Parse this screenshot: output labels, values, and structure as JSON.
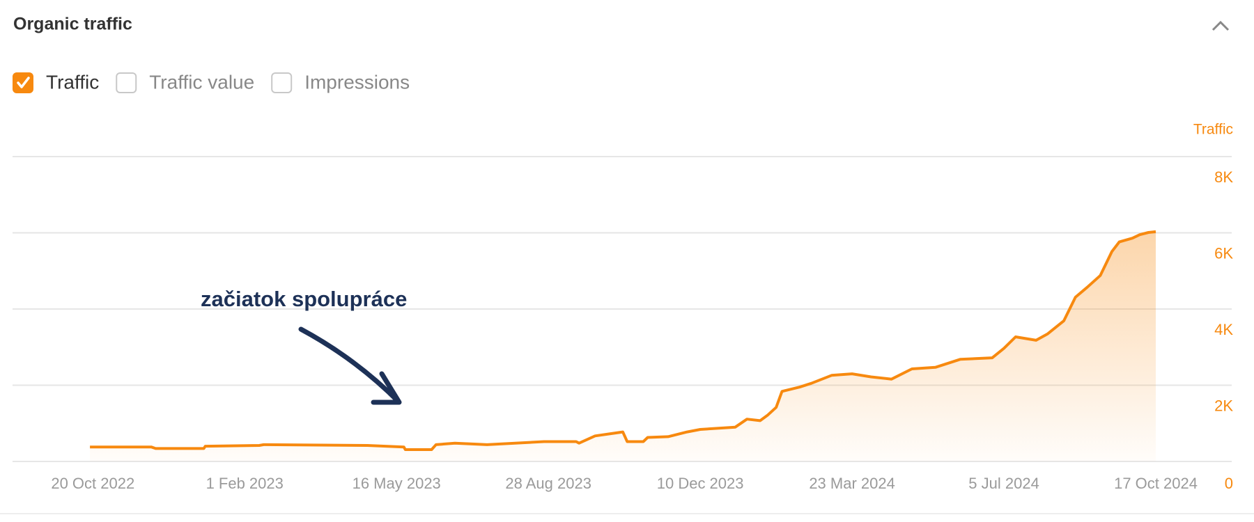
{
  "header": {
    "title": "Organic traffic"
  },
  "metrics": [
    {
      "label": "Traffic",
      "checked": true
    },
    {
      "label": "Traffic value",
      "checked": false
    },
    {
      "label": "Impressions",
      "checked": false
    }
  ],
  "chart_data": {
    "type": "area",
    "y_label": "Traffic",
    "annotation": "začiatok spolupráce",
    "grid": true,
    "xlim": [
      "2022-08-26",
      "2024-12-08"
    ],
    "xticks": [
      {
        "value": "2022-10-20",
        "label": "20 Oct 2022"
      },
      {
        "value": "2023-02-01",
        "label": "1 Feb 2023"
      },
      {
        "value": "2023-05-16",
        "label": "16 May 2023"
      },
      {
        "value": "2023-08-28",
        "label": "28 Aug 2023"
      },
      {
        "value": "2023-12-10",
        "label": "10 Dec 2023"
      },
      {
        "value": "2024-03-23",
        "label": "23 Mar 2024"
      },
      {
        "value": "2024-07-05",
        "label": "5 Jul 2024"
      },
      {
        "value": "2024-10-17",
        "label": "17 Oct 2024"
      }
    ],
    "ylim": [
      0,
      8000
    ],
    "yticks": [
      0,
      {
        "value": 2000,
        "label": "2K"
      },
      {
        "value": 4000,
        "label": "4K"
      },
      {
        "value": 6000,
        "label": "6K"
      },
      {
        "value": 8000,
        "label": "8K"
      }
    ],
    "x": [
      "2022-10-18",
      "2022-11-29",
      "2022-12-02",
      "2023-01-04",
      "2023-01-05",
      "2023-02-11",
      "2023-02-14",
      "2023-04-26",
      "2023-05-21",
      "2023-05-22",
      "2023-06-09",
      "2023-06-12",
      "2023-06-25",
      "2023-07-17",
      "2023-08-25",
      "2023-09-16",
      "2023-09-18",
      "2023-09-29",
      "2023-10-18",
      "2023-10-21",
      "2023-11-01",
      "2023-11-04",
      "2023-11-18",
      "2023-12-01",
      "2023-12-10",
      "2024-01-03",
      "2024-01-11",
      "2024-01-20",
      "2024-01-25",
      "2024-01-31",
      "2024-02-04",
      "2024-02-16",
      "2024-02-24",
      "2024-03-09",
      "2024-03-23",
      "2024-04-05",
      "2024-04-19",
      "2024-05-03",
      "2024-05-19",
      "2024-06-05",
      "2024-06-27",
      "2024-07-05",
      "2024-07-13",
      "2024-07-27",
      "2024-08-04",
      "2024-08-15",
      "2024-08-23",
      "2024-08-31",
      "2024-09-09",
      "2024-09-17",
      "2024-09-22",
      "2024-10-01",
      "2024-10-06",
      "2024-10-12",
      "2024-10-17"
    ],
    "series": [
      {
        "name": "Traffic",
        "color": "#f7890f",
        "values": [
          380,
          380,
          340,
          340,
          400,
          420,
          440,
          420,
          380,
          310,
          310,
          440,
          480,
          440,
          520,
          520,
          480,
          670,
          775,
          520,
          520,
          630,
          650,
          775,
          840,
          900,
          1110,
          1070,
          1210,
          1420,
          1840,
          1950,
          2050,
          2260,
          2300,
          2220,
          2160,
          2430,
          2470,
          2680,
          2720,
          2970,
          3270,
          3180,
          3350,
          3690,
          4310,
          4570,
          4880,
          5510,
          5760,
          5860,
          5950,
          6010,
          6030
        ]
      }
    ]
  }
}
